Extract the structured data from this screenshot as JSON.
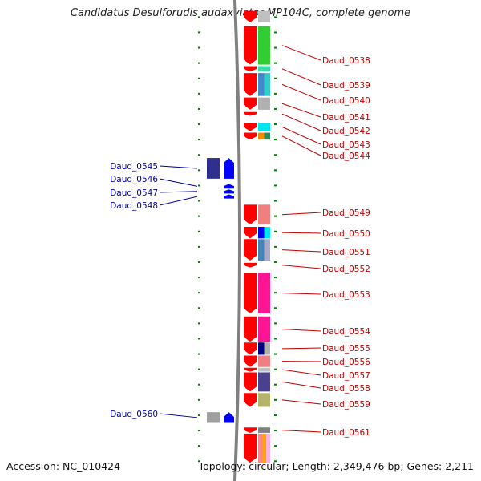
{
  "title": "Candidatus Desulforudis audaxviator MP104C, complete genome",
  "accession_text": "Accession: NC_010424",
  "topology_text": "Topology: circular; Length: 2,349,476 bp; Genes: 2,211",
  "scale": {
    "start_bp": 573100,
    "end_bp": 602600,
    "major_ticks_kbp": [
      575,
      580,
      585,
      590,
      595,
      600
    ],
    "tick_unit": "kbp"
  },
  "colors": {
    "forward_gene": "#ff0000",
    "reverse_gene": "#0000ff",
    "forward_label": "#c00000",
    "reverse_label": "#0000a0",
    "tick": "#008000",
    "backbone": "#808080"
  },
  "genes": [
    {
      "id": "top-fragment",
      "label": "",
      "strand": "+",
      "start_bp": 573100,
      "end_bp": 573850,
      "cog": [
        "#c0c0c0"
      ]
    },
    {
      "id": "Daud_0538",
      "label": "Daud_0538",
      "strand": "+",
      "start_bp": 574100,
      "end_bp": 576600,
      "cog": [
        "#33cc33"
      ]
    },
    {
      "id": "Daud_0539",
      "label": "Daud_0539",
      "strand": "+",
      "start_bp": 576700,
      "end_bp": 577050,
      "cog": [
        "#33ddaa"
      ]
    },
    {
      "id": "Daud_0540",
      "label": "Daud_0540",
      "strand": "+",
      "start_bp": 577150,
      "end_bp": 578650,
      "cog": [
        "#4488cc",
        "#33cccc"
      ]
    },
    {
      "id": "Daud_0541",
      "label": "Daud_0541",
      "strand": "+",
      "start_bp": 578750,
      "end_bp": 579550,
      "cog": [
        "#b0b0b0"
      ]
    },
    {
      "id": "Daud_0542",
      "label": "Daud_0542",
      "strand": "+",
      "start_bp": 579700,
      "end_bp": 579950,
      "cog": []
    },
    {
      "id": "Daud_0543",
      "label": "Daud_0543",
      "strand": "+",
      "start_bp": 580400,
      "end_bp": 580950,
      "cog": [
        "#00e5ee"
      ]
    },
    {
      "id": "Daud_0544",
      "label": "Daud_0544",
      "strand": "+",
      "start_bp": 581050,
      "end_bp": 581500,
      "cog": [
        "#f08a00",
        "#2e8b57"
      ]
    },
    {
      "id": "Daud_0545",
      "label": "Daud_0545",
      "strand": "-",
      "start_bp": 582700,
      "end_bp": 584050,
      "cog": [
        "#2f2f8f"
      ]
    },
    {
      "id": "Daud_0546",
      "label": "Daud_0546",
      "strand": "-",
      "start_bp": 584400,
      "end_bp": 584700,
      "cog": []
    },
    {
      "id": "Daud_0547",
      "label": "Daud_0547",
      "strand": "-",
      "start_bp": 584750,
      "end_bp": 585020,
      "cog": []
    },
    {
      "id": "Daud_0548",
      "label": "Daud_0548",
      "strand": "-",
      "start_bp": 585080,
      "end_bp": 585350,
      "cog": []
    },
    {
      "id": "Daud_0549",
      "label": "Daud_0549",
      "strand": "+",
      "start_bp": 585750,
      "end_bp": 587050,
      "cog": [
        "#f08080"
      ]
    },
    {
      "id": "Daud_0550",
      "label": "Daud_0550",
      "strand": "+",
      "start_bp": 587200,
      "end_bp": 587950,
      "cog": [
        "#0000ee",
        "#00e5ee"
      ]
    },
    {
      "id": "Daud_0551",
      "label": "Daud_0551",
      "strand": "+",
      "start_bp": 588000,
      "end_bp": 589400,
      "cog": [
        "#4682b4",
        "#a9a9c9"
      ]
    },
    {
      "id": "Daud_0552",
      "label": "Daud_0552",
      "strand": "+",
      "start_bp": 589550,
      "end_bp": 589850,
      "cog": []
    },
    {
      "id": "Daud_0553",
      "label": "Daud_0553",
      "strand": "+",
      "start_bp": 590200,
      "end_bp": 592850,
      "cog": [
        "#ff1493"
      ]
    },
    {
      "id": "Daud_0554",
      "label": "Daud_0554",
      "strand": "+",
      "start_bp": 593050,
      "end_bp": 594700,
      "cog": [
        "#ff1493"
      ]
    },
    {
      "id": "Daud_0555",
      "label": "Daud_0555",
      "strand": "+",
      "start_bp": 594750,
      "end_bp": 595550,
      "cog": [
        "#000080",
        "#b0b0b0"
      ]
    },
    {
      "id": "Daud_0556",
      "label": "Daud_0556",
      "strand": "+",
      "start_bp": 595600,
      "end_bp": 596350,
      "cog": [
        "#f08080"
      ]
    },
    {
      "id": "Daud_0557",
      "label": "Daud_0557",
      "strand": "+",
      "start_bp": 596400,
      "end_bp": 596650,
      "cog": [
        "#c0c0c0"
      ]
    },
    {
      "id": "Daud_0558",
      "label": "Daud_0558",
      "strand": "+",
      "start_bp": 596700,
      "end_bp": 597950,
      "cog": [
        "#4b3f8f"
      ]
    },
    {
      "id": "Daud_0559",
      "label": "Daud_0559",
      "strand": "+",
      "start_bp": 598050,
      "end_bp": 598950,
      "cog": [
        "#b5b56a"
      ]
    },
    {
      "id": "Daud_0560",
      "label": "Daud_0560",
      "strand": "-",
      "start_bp": 599300,
      "end_bp": 600000,
      "cog": [
        "#a0a0a0"
      ]
    },
    {
      "id": "Daud_0561",
      "label": "Daud_0561",
      "strand": "+",
      "start_bp": 600300,
      "end_bp": 600650,
      "cog": [
        "#808080"
      ]
    },
    {
      "id": "bottom-fragment",
      "label": "",
      "strand": "+",
      "start_bp": 600700,
      "end_bp": 602600,
      "cog": [
        "#ff8888",
        "#ffa500",
        "#ffb0e0"
      ]
    }
  ]
}
